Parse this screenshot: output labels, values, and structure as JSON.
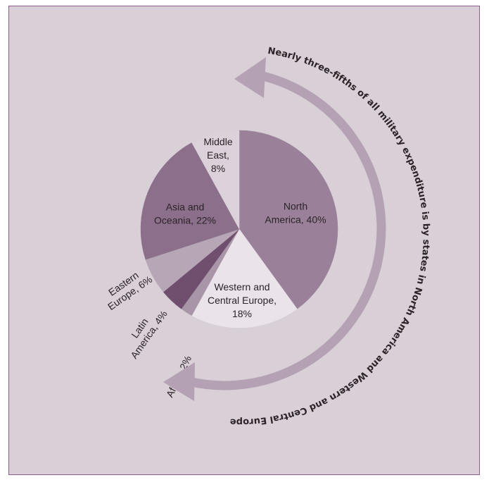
{
  "chart_data": {
    "type": "pie",
    "title": "",
    "slices": [
      {
        "label": "North America, 40%",
        "lines": [
          "North",
          "America, 40%"
        ],
        "value": 40,
        "color": "#9a8199"
      },
      {
        "label": "Western and Central Europe, 18%",
        "lines": [
          "Western and",
          "Central Europe,",
          "18%"
        ],
        "value": 18,
        "color": "#ebe3ea"
      },
      {
        "label": "Africa, 2%",
        "lines": [
          "Africa, 2%"
        ],
        "value": 2,
        "color": "#a995a8"
      },
      {
        "label": "Latin America, 4%",
        "lines": [
          "Latin",
          "America, 4%"
        ],
        "value": 4,
        "color": "#6f4e6e"
      },
      {
        "label": "Eastern Europe, 6%",
        "lines": [
          "Eastern",
          "Europe, 6%"
        ],
        "value": 6,
        "color": "#b7a6b6"
      },
      {
        "label": "Asia and Oceania, 22%",
        "lines": [
          "Asia and",
          "Oceania, 22%"
        ],
        "value": 22,
        "color": "#8c6f8b"
      },
      {
        "label": "Middle East, 8%",
        "lines": [
          "Middle",
          "East,",
          "8%"
        ],
        "value": 8,
        "color": "#dbd1da"
      }
    ],
    "annotation": "Nearly three-fifths of all military expenditure is by states in North America and Western and Central Europe",
    "arrow_color": "#b4a1b3",
    "background_color": "#d8cfd7",
    "border_color": "#8a5e86"
  }
}
